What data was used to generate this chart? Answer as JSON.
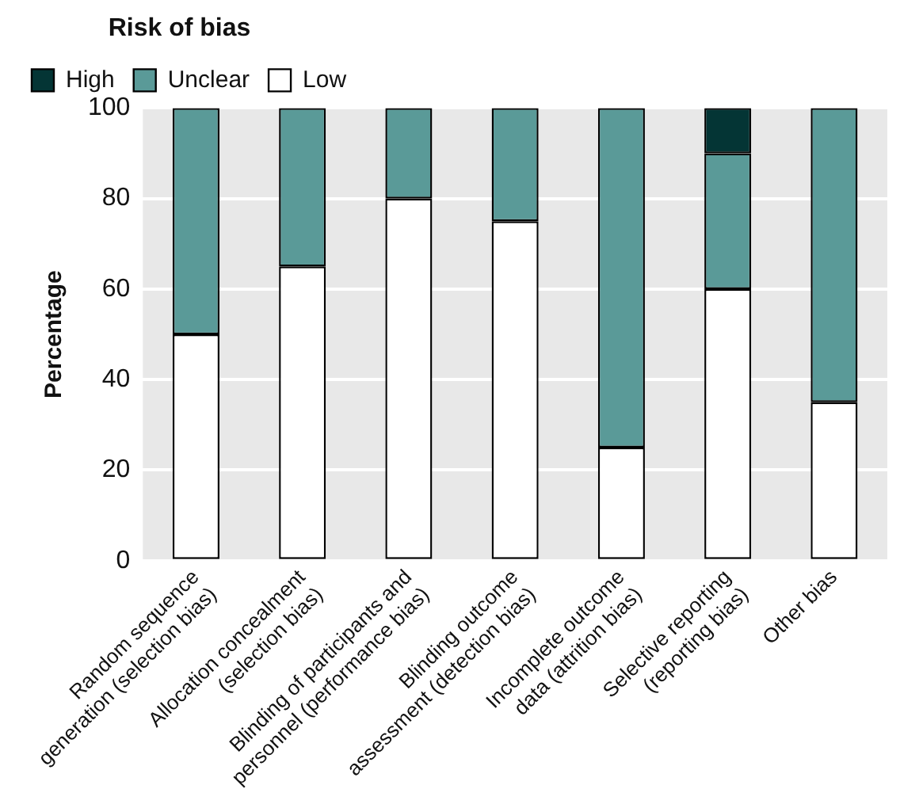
{
  "chart_data": {
    "type": "bar",
    "stacked": true,
    "ylabel": "Percentage",
    "legend_title": "Risk of bias",
    "legend": "top left",
    "grid": "y",
    "categories": [
      "Random sequence\ngeneration (selection bias)",
      "Allocation concealment\n(selection bias)",
      "Blinding of participants and\npersonnel (performance bias)",
      "Blinding outcome\nassessment (detection bias)",
      "Incomplete outcome\ndata (attrition bias)",
      "Selective reporting\n(reporting bias)",
      "Other bias"
    ],
    "series": [
      {
        "name": "Low",
        "color": "#ffffff",
        "values": [
          50,
          65,
          80,
          75,
          25,
          60,
          35
        ]
      },
      {
        "name": "Unclear",
        "color": "#5a9a98",
        "values": [
          50,
          35,
          20,
          25,
          75,
          30,
          65
        ]
      },
      {
        "name": "High",
        "color": "#043535",
        "values": [
          0,
          0,
          0,
          0,
          0,
          10,
          0
        ]
      }
    ],
    "ylim": [
      0,
      100
    ],
    "yticks": [
      0,
      20,
      40,
      60,
      80,
      100
    ]
  }
}
